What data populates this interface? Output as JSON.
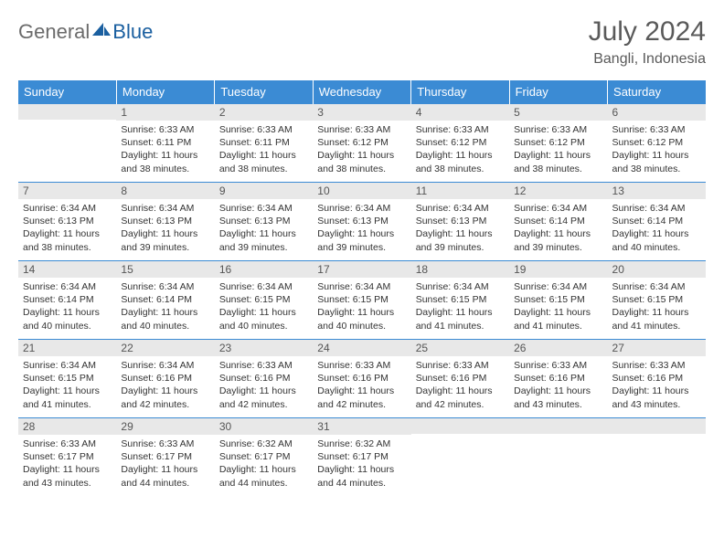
{
  "brand": {
    "part1": "General",
    "part2": "Blue"
  },
  "title": "July 2024",
  "location": "Bangli, Indonesia",
  "colors": {
    "header_bg": "#3b8bd4",
    "header_text": "#ffffff",
    "daynum_bg": "#e8e8e8",
    "border": "#3b8bd4",
    "logo_gray": "#6b6b6b",
    "logo_blue": "#1a5fa0"
  },
  "weekdays": [
    "Sunday",
    "Monday",
    "Tuesday",
    "Wednesday",
    "Thursday",
    "Friday",
    "Saturday"
  ],
  "weeks": [
    [
      {
        "n": "",
        "lines": []
      },
      {
        "n": "1",
        "lines": [
          "Sunrise: 6:33 AM",
          "Sunset: 6:11 PM",
          "Daylight: 11 hours and 38 minutes."
        ]
      },
      {
        "n": "2",
        "lines": [
          "Sunrise: 6:33 AM",
          "Sunset: 6:11 PM",
          "Daylight: 11 hours and 38 minutes."
        ]
      },
      {
        "n": "3",
        "lines": [
          "Sunrise: 6:33 AM",
          "Sunset: 6:12 PM",
          "Daylight: 11 hours and 38 minutes."
        ]
      },
      {
        "n": "4",
        "lines": [
          "Sunrise: 6:33 AM",
          "Sunset: 6:12 PM",
          "Daylight: 11 hours and 38 minutes."
        ]
      },
      {
        "n": "5",
        "lines": [
          "Sunrise: 6:33 AM",
          "Sunset: 6:12 PM",
          "Daylight: 11 hours and 38 minutes."
        ]
      },
      {
        "n": "6",
        "lines": [
          "Sunrise: 6:33 AM",
          "Sunset: 6:12 PM",
          "Daylight: 11 hours and 38 minutes."
        ]
      }
    ],
    [
      {
        "n": "7",
        "lines": [
          "Sunrise: 6:34 AM",
          "Sunset: 6:13 PM",
          "Daylight: 11 hours and 38 minutes."
        ]
      },
      {
        "n": "8",
        "lines": [
          "Sunrise: 6:34 AM",
          "Sunset: 6:13 PM",
          "Daylight: 11 hours and 39 minutes."
        ]
      },
      {
        "n": "9",
        "lines": [
          "Sunrise: 6:34 AM",
          "Sunset: 6:13 PM",
          "Daylight: 11 hours and 39 minutes."
        ]
      },
      {
        "n": "10",
        "lines": [
          "Sunrise: 6:34 AM",
          "Sunset: 6:13 PM",
          "Daylight: 11 hours and 39 minutes."
        ]
      },
      {
        "n": "11",
        "lines": [
          "Sunrise: 6:34 AM",
          "Sunset: 6:13 PM",
          "Daylight: 11 hours and 39 minutes."
        ]
      },
      {
        "n": "12",
        "lines": [
          "Sunrise: 6:34 AM",
          "Sunset: 6:14 PM",
          "Daylight: 11 hours and 39 minutes."
        ]
      },
      {
        "n": "13",
        "lines": [
          "Sunrise: 6:34 AM",
          "Sunset: 6:14 PM",
          "Daylight: 11 hours and 40 minutes."
        ]
      }
    ],
    [
      {
        "n": "14",
        "lines": [
          "Sunrise: 6:34 AM",
          "Sunset: 6:14 PM",
          "Daylight: 11 hours and 40 minutes."
        ]
      },
      {
        "n": "15",
        "lines": [
          "Sunrise: 6:34 AM",
          "Sunset: 6:14 PM",
          "Daylight: 11 hours and 40 minutes."
        ]
      },
      {
        "n": "16",
        "lines": [
          "Sunrise: 6:34 AM",
          "Sunset: 6:15 PM",
          "Daylight: 11 hours and 40 minutes."
        ]
      },
      {
        "n": "17",
        "lines": [
          "Sunrise: 6:34 AM",
          "Sunset: 6:15 PM",
          "Daylight: 11 hours and 40 minutes."
        ]
      },
      {
        "n": "18",
        "lines": [
          "Sunrise: 6:34 AM",
          "Sunset: 6:15 PM",
          "Daylight: 11 hours and 41 minutes."
        ]
      },
      {
        "n": "19",
        "lines": [
          "Sunrise: 6:34 AM",
          "Sunset: 6:15 PM",
          "Daylight: 11 hours and 41 minutes."
        ]
      },
      {
        "n": "20",
        "lines": [
          "Sunrise: 6:34 AM",
          "Sunset: 6:15 PM",
          "Daylight: 11 hours and 41 minutes."
        ]
      }
    ],
    [
      {
        "n": "21",
        "lines": [
          "Sunrise: 6:34 AM",
          "Sunset: 6:15 PM",
          "Daylight: 11 hours and 41 minutes."
        ]
      },
      {
        "n": "22",
        "lines": [
          "Sunrise: 6:34 AM",
          "Sunset: 6:16 PM",
          "Daylight: 11 hours and 42 minutes."
        ]
      },
      {
        "n": "23",
        "lines": [
          "Sunrise: 6:33 AM",
          "Sunset: 6:16 PM",
          "Daylight: 11 hours and 42 minutes."
        ]
      },
      {
        "n": "24",
        "lines": [
          "Sunrise: 6:33 AM",
          "Sunset: 6:16 PM",
          "Daylight: 11 hours and 42 minutes."
        ]
      },
      {
        "n": "25",
        "lines": [
          "Sunrise: 6:33 AM",
          "Sunset: 6:16 PM",
          "Daylight: 11 hours and 42 minutes."
        ]
      },
      {
        "n": "26",
        "lines": [
          "Sunrise: 6:33 AM",
          "Sunset: 6:16 PM",
          "Daylight: 11 hours and 43 minutes."
        ]
      },
      {
        "n": "27",
        "lines": [
          "Sunrise: 6:33 AM",
          "Sunset: 6:16 PM",
          "Daylight: 11 hours and 43 minutes."
        ]
      }
    ],
    [
      {
        "n": "28",
        "lines": [
          "Sunrise: 6:33 AM",
          "Sunset: 6:17 PM",
          "Daylight: 11 hours and 43 minutes."
        ]
      },
      {
        "n": "29",
        "lines": [
          "Sunrise: 6:33 AM",
          "Sunset: 6:17 PM",
          "Daylight: 11 hours and 44 minutes."
        ]
      },
      {
        "n": "30",
        "lines": [
          "Sunrise: 6:32 AM",
          "Sunset: 6:17 PM",
          "Daylight: 11 hours and 44 minutes."
        ]
      },
      {
        "n": "31",
        "lines": [
          "Sunrise: 6:32 AM",
          "Sunset: 6:17 PM",
          "Daylight: 11 hours and 44 minutes."
        ]
      },
      {
        "n": "",
        "lines": []
      },
      {
        "n": "",
        "lines": []
      },
      {
        "n": "",
        "lines": []
      }
    ]
  ]
}
